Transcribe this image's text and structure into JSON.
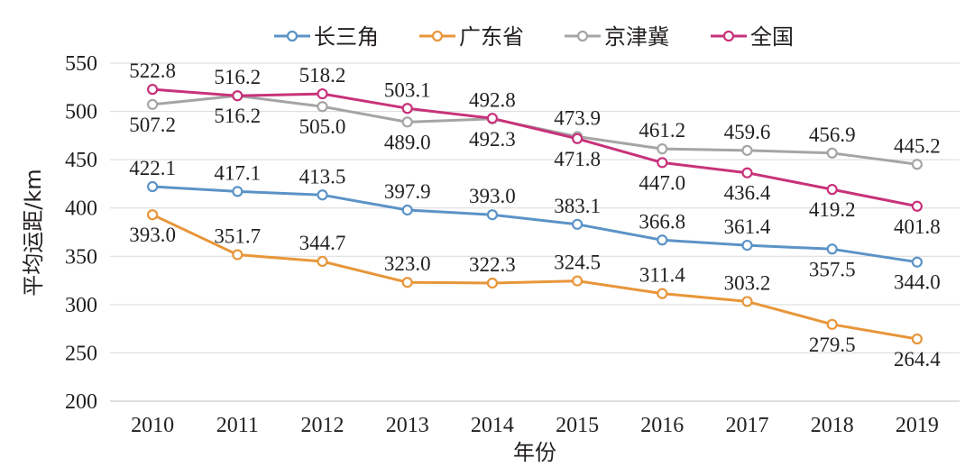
{
  "chart_data": {
    "type": "line",
    "xlabel": "年份",
    "ylabel": "平均运距/km",
    "categories": [
      "2010",
      "2011",
      "2012",
      "2013",
      "2014",
      "2015",
      "2016",
      "2017",
      "2018",
      "2019"
    ],
    "y_ticks": [
      200,
      250,
      300,
      350,
      400,
      450,
      500,
      550
    ],
    "ylim": [
      200,
      550
    ],
    "grid": "horizontal",
    "legend_position": "top",
    "series": [
      {
        "name": "长三角",
        "color": "#5b93c7",
        "label_pos": [
          "above",
          "above",
          "above",
          "above",
          "above",
          "above",
          "above",
          "above",
          "below",
          "below"
        ],
        "values": [
          422.1,
          417.1,
          413.5,
          397.9,
          393.0,
          383.1,
          366.8,
          361.4,
          357.5,
          344.0
        ]
      },
      {
        "name": "广东省",
        "color": "#e8963a",
        "label_pos": [
          "below",
          "above",
          "above",
          "above",
          "above",
          "above",
          "above",
          "above",
          "below",
          "below"
        ],
        "values": [
          393.0,
          351.7,
          344.7,
          323.0,
          322.3,
          324.5,
          311.4,
          303.2,
          279.5,
          264.4
        ]
      },
      {
        "name": "京津冀",
        "color": "#a5a5a5",
        "label_pos": [
          "below",
          "below",
          "below",
          "below",
          "below",
          "above",
          "above",
          "above",
          "above",
          "above"
        ],
        "values": [
          507.2,
          516.2,
          505.0,
          489.0,
          492.3,
          473.9,
          461.2,
          459.6,
          456.9,
          445.2
        ]
      },
      {
        "name": "全国",
        "color": "#c8327a",
        "label_pos": [
          "above",
          "above",
          "above",
          "above",
          "above",
          "below",
          "below",
          "below",
          "below",
          "below"
        ],
        "values": [
          522.8,
          516.2,
          518.2,
          503.1,
          492.8,
          471.8,
          447.0,
          436.4,
          419.2,
          401.8
        ]
      }
    ]
  }
}
